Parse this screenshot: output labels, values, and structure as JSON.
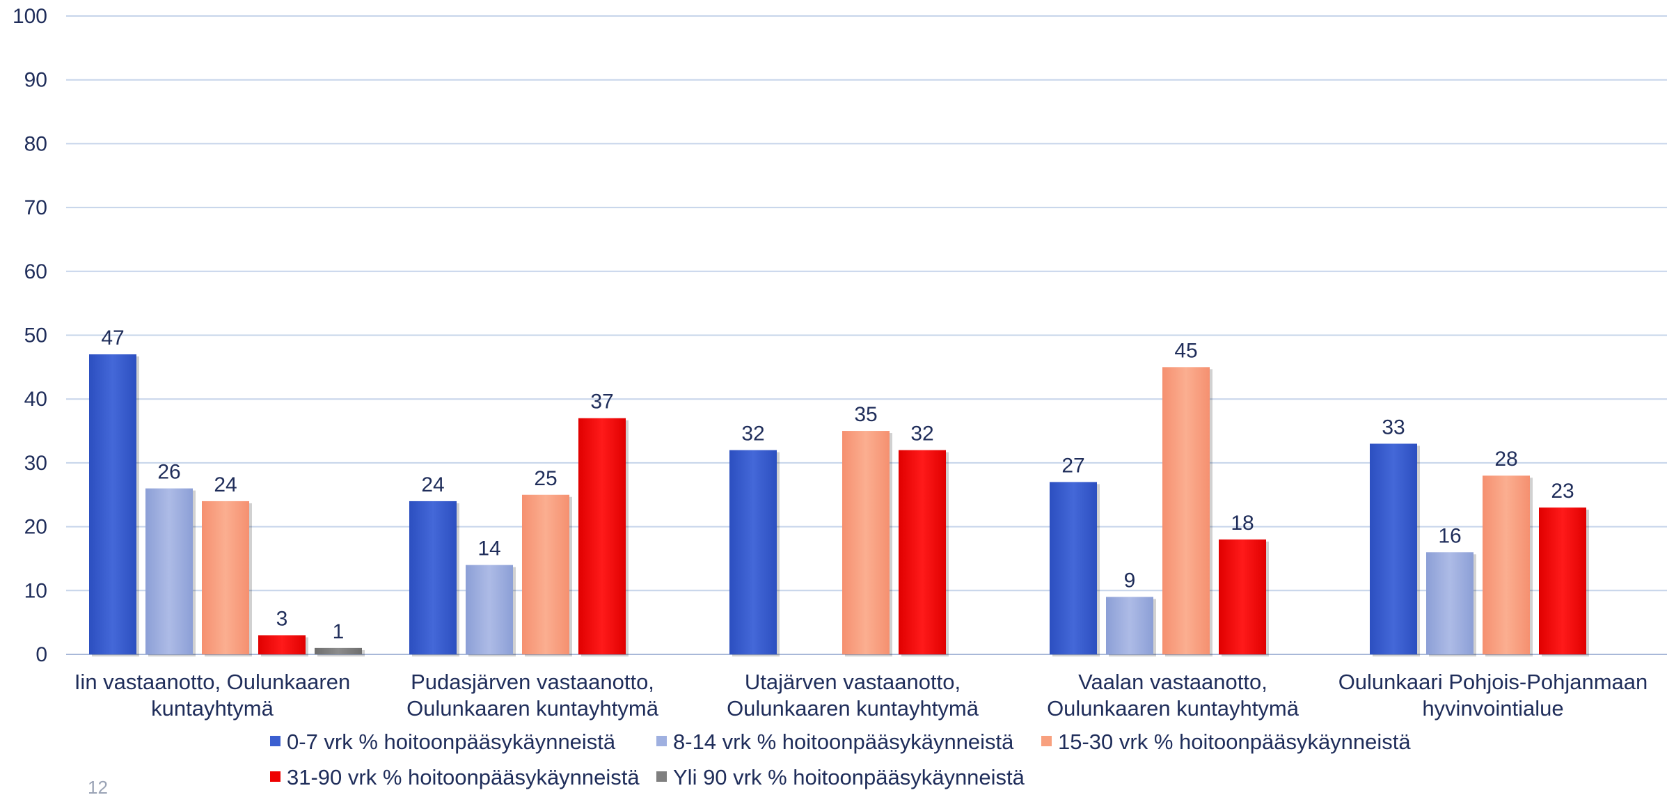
{
  "page_number": "12",
  "chart_data": {
    "type": "bar",
    "ylim": [
      0,
      100
    ],
    "yticks": [
      0,
      10,
      20,
      30,
      40,
      50,
      60,
      70,
      80,
      90,
      100
    ],
    "grid": true,
    "legend_position": "bottom",
    "categories": [
      [
        "Iin vastaanotto, Oulunkaaren",
        "kuntayhtymä"
      ],
      [
        "Pudasjärven vastaanotto,",
        "Oulunkaaren kuntayhtymä"
      ],
      [
        "Utajärven vastaanotto,",
        "Oulunkaaren kuntayhtymä"
      ],
      [
        "Vaalan vastaanotto,",
        "Oulunkaaren kuntayhtymä"
      ],
      [
        "Oulunkaari Pohjois-Pohjanmaan",
        "hyvinvointialue"
      ]
    ],
    "series": [
      {
        "name": "0-7 vrk % hoitoonpääsykäynneistä",
        "color": "#3b5fd0",
        "values": [
          47,
          24,
          32,
          27,
          33
        ]
      },
      {
        "name": "8-14 vrk % hoitoonpääsykäynneistä",
        "color": "#9fb0e0",
        "values": [
          26,
          14,
          null,
          9,
          16
        ]
      },
      {
        "name": "15-30 vrk % hoitoonpääsykäynneistä",
        "color": "#f8a07e",
        "values": [
          24,
          25,
          35,
          45,
          28
        ]
      },
      {
        "name": "31-90 vrk % hoitoonpääsykäynneistä",
        "color": "#ee0000",
        "values": [
          3,
          37,
          32,
          18,
          23
        ]
      },
      {
        "name": "Yli 90 vrk % hoitoonpääsykäynneistä",
        "color": "#7f7f7f",
        "values": [
          1,
          null,
          null,
          null,
          null
        ]
      }
    ]
  }
}
